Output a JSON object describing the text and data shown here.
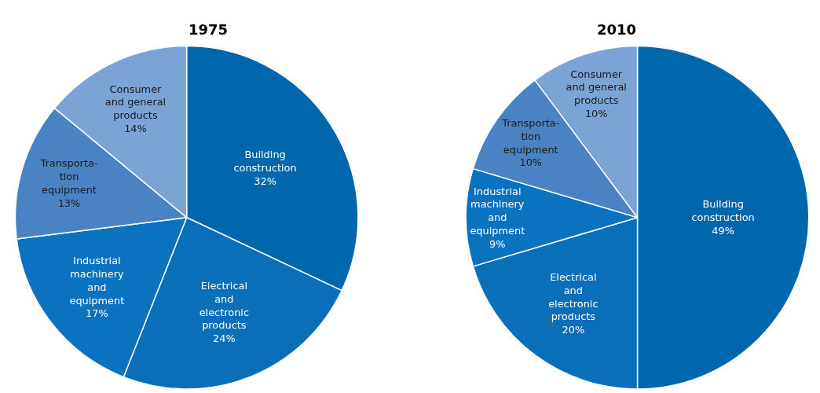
{
  "chart_data": [
    {
      "type": "pie",
      "title": "1975",
      "categories": [
        "Building\nconstruction",
        "Electrical\nand\nelectronic\nproducts",
        "Industrial\nmachinery\nand\nequipment",
        "Transporta-\ntion\nequipment",
        "Consumer\nand general\nproducts"
      ],
      "values": [
        32,
        24,
        17,
        13,
        14
      ],
      "value_labels": [
        "32%",
        "24%",
        "17%",
        "13%",
        "14%"
      ],
      "colors": [
        "#0067ad",
        "#0a6fb8",
        "#0b72bf",
        "#4a83c4",
        "#7aa3d6"
      ]
    },
    {
      "type": "pie",
      "title": "2010",
      "categories": [
        "Building\nconstruction",
        "Electrical\nand\nelectronic\nproducts",
        "Industrial\nmachinery\nand\nequipment",
        "Transporta-\ntion\nequipment",
        "Consumer\nand general\nproducts"
      ],
      "values": [
        49,
        20,
        9,
        10,
        10
      ],
      "value_labels": [
        "49%",
        "20%",
        "9%",
        "10%",
        "10%"
      ],
      "colors": [
        "#0067ad",
        "#0a6fb8",
        "#0b72bf",
        "#4a83c4",
        "#7aa3d6"
      ]
    }
  ]
}
